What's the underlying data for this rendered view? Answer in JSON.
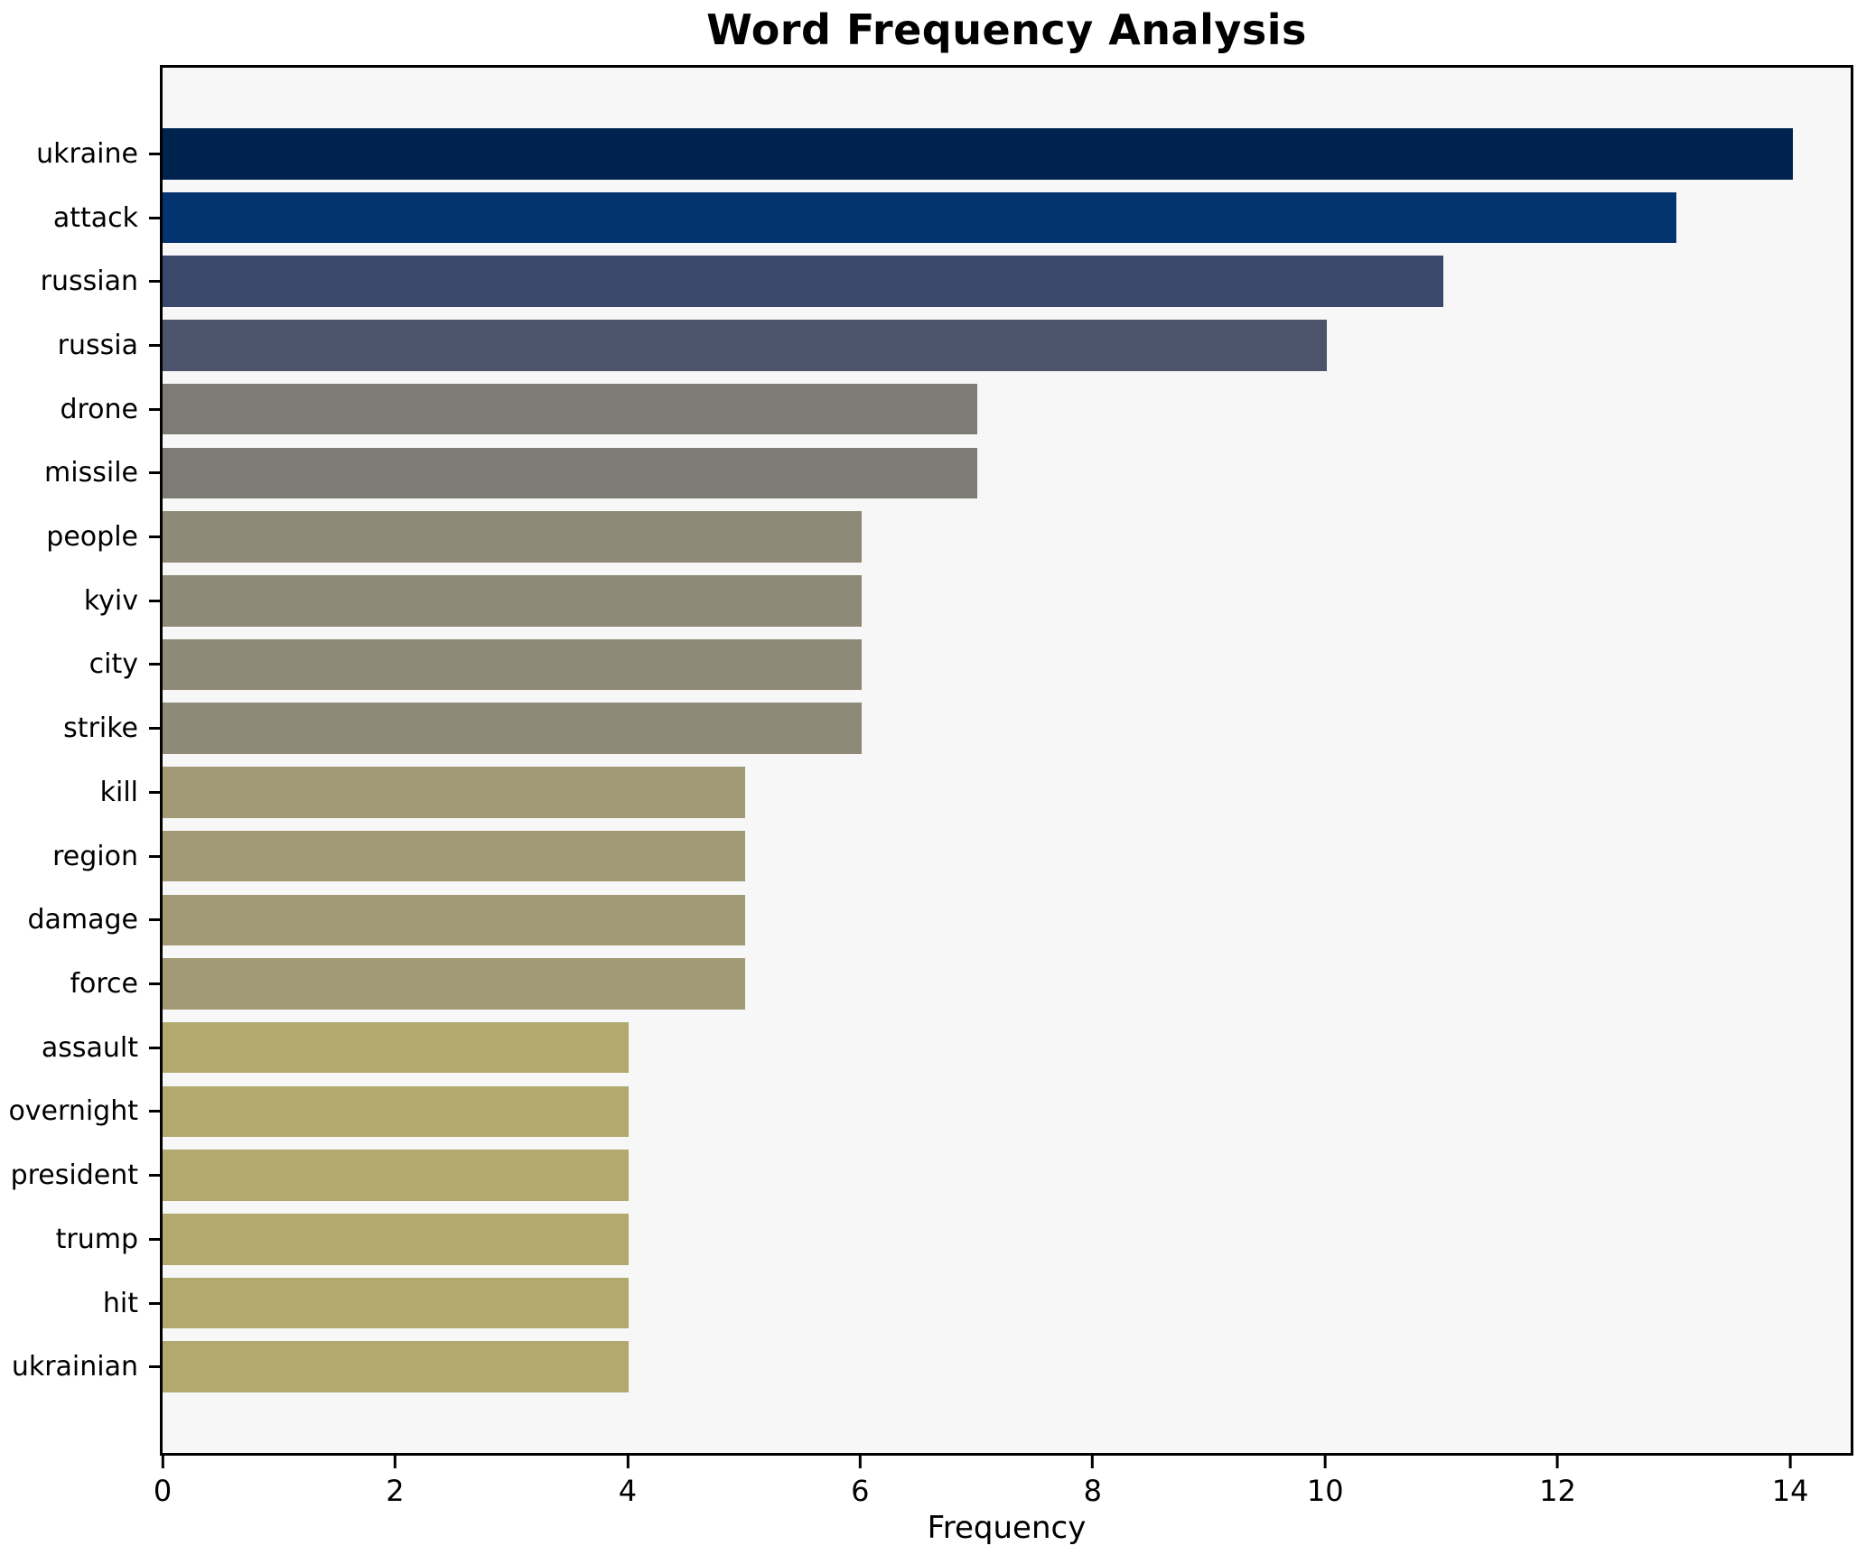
{
  "figure": {
    "background": "#ffffff",
    "plot_background": "#f7f7f7",
    "spine_color": "#000000"
  },
  "chart_data": {
    "type": "bar",
    "orientation": "horizontal",
    "title": "Word Frequency Analysis",
    "xlabel": "Frequency",
    "ylabel": "",
    "categories": [
      "ukraine",
      "attack",
      "russian",
      "russia",
      "drone",
      "missile",
      "people",
      "kyiv",
      "city",
      "strike",
      "kill",
      "region",
      "damage",
      "force",
      "assault",
      "overnight",
      "president",
      "trump",
      "hit",
      "ukrainian"
    ],
    "values": [
      14,
      13,
      11,
      10,
      7,
      7,
      6,
      6,
      6,
      6,
      5,
      5,
      5,
      5,
      4,
      4,
      4,
      4,
      4,
      4
    ],
    "bar_colors": [
      "#00224e",
      "#04346f",
      "#3a486b",
      "#4c546c",
      "#7c7b74",
      "#7c7b74",
      "#8f8977",
      "#8f8977",
      "#8f8977",
      "#8f8977",
      "#a19a75",
      "#a19a75",
      "#a19a75",
      "#a19a75",
      "#b1a96e",
      "#b1a96e",
      "#b1a96e",
      "#b1a96e",
      "#b1a96e",
      "#b1a96e"
    ],
    "x_ticks": [
      0,
      2,
      4,
      6,
      8,
      10,
      12,
      14
    ],
    "xlim": [
      0,
      14.52
    ],
    "grid": false,
    "legend": null
  }
}
